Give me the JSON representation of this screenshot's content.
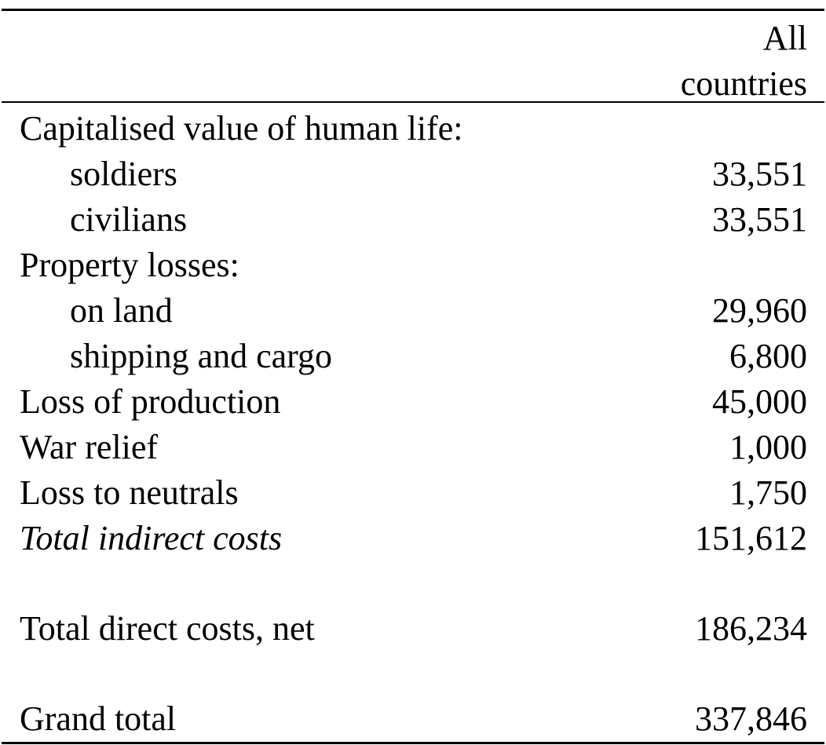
{
  "table": {
    "header": {
      "line1": "All",
      "line2": "countries"
    },
    "rows": [
      {
        "label": "Capitalised value of human life:",
        "value": ""
      },
      {
        "label": "soldiers",
        "value": "33,551"
      },
      {
        "label": "civilians",
        "value": "33,551"
      },
      {
        "label": "Property losses:",
        "value": ""
      },
      {
        "label": "on land",
        "value": "29,960"
      },
      {
        "label": "shipping and cargo",
        "value": "6,800"
      },
      {
        "label": "Loss of production",
        "value": "45,000"
      },
      {
        "label": "War relief",
        "value": "1,000"
      },
      {
        "label": "Loss to neutrals",
        "value": "1,750"
      },
      {
        "label": "Total indirect costs",
        "value": "151,612"
      },
      {
        "label": "Total direct costs, net",
        "value": "186,234"
      },
      {
        "label": "Grand total",
        "value": "337,846"
      }
    ]
  }
}
